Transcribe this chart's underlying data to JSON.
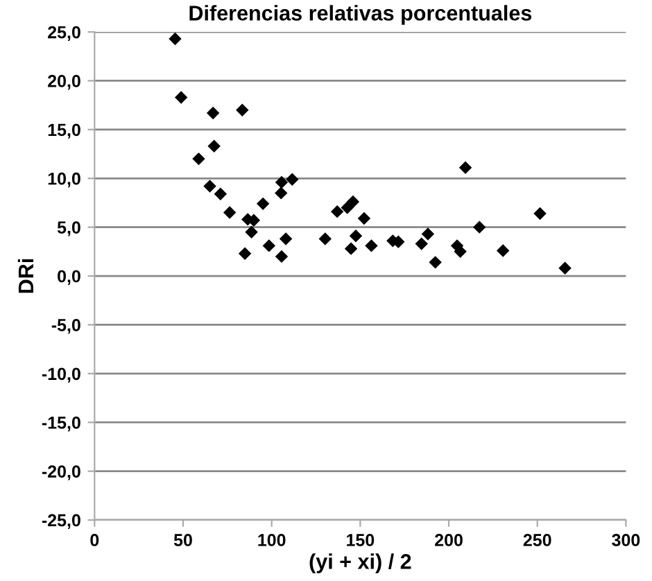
{
  "chart_data": {
    "type": "scatter",
    "title": "Diferencias relativas porcentuales",
    "xlabel": "(yi + xi) / 2",
    "ylabel": "DRi",
    "x": [
      45.5,
      48.9,
      58.8,
      66.9,
      67.5,
      83.4,
      65.1,
      71.1,
      76.3,
      86.5,
      89.9,
      88.6,
      84.9,
      95.1,
      98.5,
      105.6,
      108,
      105.3,
      105.6,
      111.6,
      130.2,
      137,
      142.7,
      145.9,
      144.8,
      147.5,
      152.2,
      156.3,
      168.4,
      171.5,
      184.6,
      188.2,
      192.4,
      204.7,
      206.5,
      209.4,
      217.3,
      230.6,
      251.5,
      265.6
    ],
    "series": [
      {
        "color": "#000000",
        "values": [
          24.3,
          18.3,
          12.0,
          16.7,
          13.3,
          17.0,
          9.2,
          8.4,
          6.5,
          5.8,
          5.7,
          4.5,
          2.3,
          7.4,
          3.1,
          2.0,
          3.8,
          8.5,
          9.6,
          9.9,
          3.8,
          6.6,
          7.0,
          7.6,
          2.8,
          4.1,
          5.9,
          3.1,
          3.6,
          3.5,
          3.3,
          4.3,
          1.4,
          3.1,
          2.5,
          11.1,
          5.0,
          2.6,
          6.4,
          0.8
        ]
      }
    ],
    "xlim": [
      0,
      300
    ],
    "xticks": [
      0,
      50,
      100,
      150,
      200,
      250,
      300
    ],
    "ylim": [
      -25,
      25
    ],
    "yticks": [
      {
        "value": -25,
        "label": "-25,0"
      },
      {
        "value": -20,
        "label": "-20,0"
      },
      {
        "value": -15,
        "label": "-15,0"
      },
      {
        "value": -10,
        "label": "-10,0"
      },
      {
        "value": -5,
        "label": "-5,0"
      },
      {
        "value": 0,
        "label": "0,0"
      },
      {
        "value": 5,
        "label": "5,0"
      },
      {
        "value": 10,
        "label": "10,0"
      },
      {
        "value": 15,
        "label": "15,0"
      },
      {
        "value": 20,
        "label": "20,0"
      },
      {
        "value": 25,
        "label": "25,0"
      }
    ],
    "grid": "y",
    "marker": "diamond",
    "legend": false
  }
}
